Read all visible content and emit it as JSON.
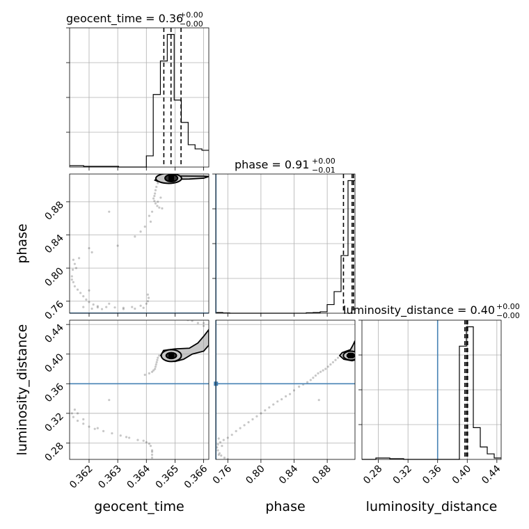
{
  "chart_data": {
    "type": "corner",
    "parameters": [
      "geocent_time",
      "phase",
      "luminosity_distance"
    ],
    "truths": {
      "geocent_time": null,
      "phase": 0.7457,
      "luminosity_distance": 0.36
    },
    "truth_color": "#4682b4",
    "titles": [
      {
        "param": "geocent_time",
        "text": "geocent_time = 0.36",
        "plus": "+0.00",
        "minus": "−0.00"
      },
      {
        "param": "phase",
        "text": "phase = 0.91",
        "plus": "+0.00",
        "minus": "−0.01"
      },
      {
        "param": "luminosity_distance",
        "text": "luminosity_distance = 0.40",
        "plus": "+0.00",
        "minus": "−0.00"
      }
    ],
    "ranges": {
      "geocent_time": [
        0.36132,
        0.36618
      ],
      "phase": [
        0.7455,
        0.9135
      ],
      "luminosity_distance": [
        0.2578,
        0.4458
      ]
    },
    "ticks": {
      "geocent_time": {
        "values": [
          0.362,
          0.363,
          0.364,
          0.365,
          0.366
        ],
        "labels": [
          "0.362",
          "0.363",
          "0.364",
          "0.365",
          "0.366"
        ]
      },
      "phase": {
        "values": [
          0.76,
          0.8,
          0.84,
          0.88
        ],
        "labels": [
          "0.76",
          "0.80",
          "0.84",
          "0.88"
        ]
      },
      "luminosity_distance": {
        "values": [
          0.28,
          0.32,
          0.36,
          0.4,
          0.44
        ],
        "labels": [
          "0.28",
          "0.32",
          "0.36",
          "0.40",
          "0.44"
        ]
      }
    },
    "row_ticks": {
      "phase": {
        "values": [
          0.76,
          0.8,
          0.84,
          0.88
        ],
        "labels": [
          "0.76",
          "0.80",
          "0.84",
          "0.88"
        ]
      },
      "luminosity_distance": {
        "values": [
          0.28,
          0.32,
          0.36,
          0.4,
          0.44
        ],
        "labels": [
          "0.28",
          "0.32",
          "0.36",
          "0.40",
          "0.44"
        ]
      }
    },
    "histograms": {
      "geocent_time": {
        "edges": [
          0.36132,
          0.36156,
          0.36181,
          0.36205,
          0.3623,
          0.36254,
          0.36278,
          0.36303,
          0.36327,
          0.36351,
          0.36375,
          0.364,
          0.36424,
          0.36449,
          0.36473,
          0.36497,
          0.36522,
          0.36546,
          0.3657,
          0.36594,
          0.36618
        ],
        "counts": [
          0.01,
          0.01,
          0.005,
          0.005,
          0.005,
          0.005,
          0.005,
          0,
          0,
          0,
          0,
          0.08,
          0.52,
          0.76,
          0.95,
          0.48,
          0.32,
          0.16,
          0.13,
          0.12
        ],
        "quantiles": [
          0.36461,
          0.36486,
          0.36521
        ]
      },
      "phase": {
        "edges": [
          0.7455,
          0.7539,
          0.7623,
          0.7707,
          0.7791,
          0.7875,
          0.7959,
          0.8043,
          0.8127,
          0.8211,
          0.8295,
          0.8379,
          0.8463,
          0.8547,
          0.8631,
          0.8715,
          0.8799,
          0.8883,
          0.8967,
          0.9051,
          0.9135
        ],
        "counts": [
          0.005,
          0.002,
          0,
          0,
          0,
          0,
          0,
          0,
          0,
          0,
          0,
          0,
          0,
          0.003,
          0.005,
          0.01,
          0.06,
          0.15,
          0.4,
          0.92
        ],
        "quantiles": [
          0.8996,
          0.91,
          0.9117
        ]
      },
      "luminosity_distance": {
        "edges": [
          0.2578,
          0.2672,
          0.2766,
          0.286,
          0.2954,
          0.3048,
          0.3142,
          0.3236,
          0.333,
          0.3424,
          0.3518,
          0.3612,
          0.3706,
          0.38,
          0.3894,
          0.3988,
          0.4082,
          0.4176,
          0.427,
          0.4364,
          0.4458
        ],
        "counts": [
          0,
          0,
          0.01,
          0.01,
          0.005,
          0.005,
          0,
          0,
          0,
          0,
          0,
          0,
          0,
          0,
          0.82,
          0.96,
          0.23,
          0.09,
          0.04,
          0.01
        ],
        "quantiles": [
          0.3968,
          0.3988,
          0.4005
        ]
      }
    },
    "joint": {
      "phase_vs_geocent_time": {
        "cores": [
          {
            "x": 0.36487,
            "y": 0.9085,
            "rx": 0.00022,
            "ry": 0.0042
          },
          {
            "x": 0.36478,
            "y": 0.9082,
            "rx": 0.00045,
            "ry": 0.006
          }
        ],
        "outer_contour": [
          [
            0.36445,
            0.911
          ],
          [
            0.365,
            0.9112
          ],
          [
            0.366,
            0.911
          ],
          [
            0.36618,
            0.9105
          ],
          [
            0.366,
            0.9085
          ],
          [
            0.3655,
            0.9074
          ],
          [
            0.365,
            0.9072
          ],
          [
            0.3646,
            0.906
          ],
          [
            0.3644,
            0.9045
          ],
          [
            0.3643,
            0.906
          ],
          [
            0.3644,
            0.909
          ]
        ],
        "scatter": [
          [
            0.3644,
            0.9025
          ],
          [
            0.36435,
            0.898
          ],
          [
            0.36432,
            0.894
          ],
          [
            0.3643,
            0.89
          ],
          [
            0.36428,
            0.887
          ],
          [
            0.36425,
            0.884
          ],
          [
            0.36428,
            0.881
          ],
          [
            0.36432,
            0.878
          ],
          [
            0.36438,
            0.875
          ],
          [
            0.36445,
            0.873
          ],
          [
            0.36455,
            0.872
          ],
          [
            0.3642,
            0.868
          ],
          [
            0.3641,
            0.863
          ],
          [
            0.3644,
            0.88
          ],
          [
            0.3645,
            0.885
          ],
          [
            0.36415,
            0.856
          ],
          [
            0.36395,
            0.85
          ],
          [
            0.3638,
            0.844
          ],
          [
            0.3636,
            0.838
          ],
          [
            0.363,
            0.827
          ],
          [
            0.3621,
            0.819
          ],
          [
            0.36165,
            0.812
          ],
          [
            0.3615,
            0.805
          ],
          [
            0.36143,
            0.798
          ],
          [
            0.3614,
            0.79
          ],
          [
            0.36145,
            0.783
          ],
          [
            0.3615,
            0.778
          ],
          [
            0.3616,
            0.774
          ],
          [
            0.3617,
            0.77
          ],
          [
            0.3618,
            0.766
          ],
          [
            0.3619,
            0.762
          ],
          [
            0.362,
            0.759
          ],
          [
            0.36215,
            0.756
          ],
          [
            0.3623,
            0.754
          ],
          [
            0.3626,
            0.753
          ],
          [
            0.3629,
            0.7525
          ],
          [
            0.3632,
            0.752
          ],
          [
            0.3635,
            0.753
          ],
          [
            0.3638,
            0.7545
          ],
          [
            0.364,
            0.757
          ],
          [
            0.36405,
            0.76
          ],
          [
            0.36408,
            0.764
          ],
          [
            0.36405,
            0.768
          ],
          [
            0.3627,
            0.868
          ],
          [
            0.3627,
            0.757
          ],
          [
            0.3623,
            0.7525
          ],
          [
            0.3621,
            0.751
          ],
          [
            0.36245,
            0.7505
          ],
          [
            0.3618,
            0.753
          ],
          [
            0.3632,
            0.7505
          ],
          [
            0.3636,
            0.751
          ],
          [
            0.3639,
            0.752
          ],
          [
            0.362,
            0.773
          ],
          [
            0.36155,
            0.8
          ],
          [
            0.36145,
            0.81
          ],
          [
            0.362,
            0.824
          ],
          [
            0.3614,
            0.786
          ]
        ]
      },
      "luminosity_distance_vs_geocent_time": {
        "cores": [
          {
            "x": 0.36487,
            "y": 0.398,
            "rx": 0.00018,
            "ry": 0.004
          },
          {
            "x": 0.36487,
            "y": 0.398,
            "rx": 0.00035,
            "ry": 0.008
          }
        ],
        "outer_contour": [
          [
            0.3645,
            0.398
          ],
          [
            0.3646,
            0.405
          ],
          [
            0.365,
            0.407
          ],
          [
            0.3655,
            0.408
          ],
          [
            0.3658,
            0.415
          ],
          [
            0.366,
            0.424
          ],
          [
            0.36618,
            0.433
          ],
          [
            0.36618,
            0.412
          ],
          [
            0.366,
            0.404
          ],
          [
            0.3656,
            0.4
          ],
          [
            0.3653,
            0.393
          ],
          [
            0.365,
            0.39
          ],
          [
            0.3647,
            0.391
          ]
        ],
        "scatter": [
          [
            0.36445,
            0.398
          ],
          [
            0.3644,
            0.395
          ],
          [
            0.36438,
            0.392
          ],
          [
            0.36436,
            0.389
          ],
          [
            0.36434,
            0.386
          ],
          [
            0.36432,
            0.383
          ],
          [
            0.3643,
            0.38
          ],
          [
            0.36425,
            0.378
          ],
          [
            0.3642,
            0.376
          ],
          [
            0.3641,
            0.374
          ],
          [
            0.36395,
            0.372
          ],
          [
            0.366,
            0.438
          ],
          [
            0.3658,
            0.442
          ],
          [
            0.3656,
            0.445
          ],
          [
            0.36545,
            0.446
          ],
          [
            0.366,
            0.442
          ],
          [
            0.3615,
            0.325
          ],
          [
            0.3614,
            0.32
          ],
          [
            0.36145,
            0.315
          ],
          [
            0.3616,
            0.31
          ],
          [
            0.3618,
            0.306
          ],
          [
            0.362,
            0.302
          ],
          [
            0.3622,
            0.299
          ],
          [
            0.3625,
            0.296
          ],
          [
            0.3628,
            0.293
          ],
          [
            0.3631,
            0.29
          ],
          [
            0.3634,
            0.287
          ],
          [
            0.3637,
            0.284
          ],
          [
            0.364,
            0.281
          ],
          [
            0.3641,
            0.279
          ],
          [
            0.36415,
            0.276
          ],
          [
            0.3642,
            0.27
          ],
          [
            0.3642,
            0.264
          ],
          [
            0.3642,
            0.26
          ],
          [
            0.3627,
            0.338
          ],
          [
            0.3616,
            0.32
          ],
          [
            0.3623,
            0.3
          ],
          [
            0.3633,
            0.288
          ],
          [
            0.3639,
            0.283
          ],
          [
            0.3618,
            0.312
          ],
          [
            0.3642,
            0.268
          ]
        ]
      },
      "luminosity_distance_vs_phase": {
        "cores": [
          {
            "x": 0.9085,
            "y": 0.398,
            "rx": 0.0045,
            "ry": 0.003
          },
          {
            "x": 0.9085,
            "y": 0.398,
            "rx": 0.009,
            "ry": 0.006
          }
        ],
        "outer_contour": [
          [
            0.895,
            0.398
          ],
          [
            0.898,
            0.402
          ],
          [
            0.903,
            0.404
          ],
          [
            0.908,
            0.406
          ],
          [
            0.911,
            0.412
          ],
          [
            0.9135,
            0.418
          ],
          [
            0.9135,
            0.392
          ],
          [
            0.91,
            0.391
          ],
          [
            0.905,
            0.392
          ],
          [
            0.9,
            0.393
          ]
        ],
        "scatter": [
          [
            0.893,
            0.395
          ],
          [
            0.89,
            0.392
          ],
          [
            0.887,
            0.389
          ],
          [
            0.884,
            0.386
          ],
          [
            0.881,
            0.383
          ],
          [
            0.878,
            0.38
          ],
          [
            0.875,
            0.378
          ],
          [
            0.872,
            0.376
          ],
          [
            0.869,
            0.374
          ],
          [
            0.866,
            0.371
          ],
          [
            0.863,
            0.368
          ],
          [
            0.86,
            0.365
          ],
          [
            0.856,
            0.362
          ],
          [
            0.851,
            0.359
          ],
          [
            0.846,
            0.356
          ],
          [
            0.84,
            0.351
          ],
          [
            0.835,
            0.346
          ],
          [
            0.83,
            0.343
          ],
          [
            0.825,
            0.339
          ],
          [
            0.82,
            0.336
          ],
          [
            0.815,
            0.332
          ],
          [
            0.81,
            0.328
          ],
          [
            0.805,
            0.324
          ],
          [
            0.8,
            0.32
          ],
          [
            0.795,
            0.316
          ],
          [
            0.79,
            0.312
          ],
          [
            0.785,
            0.308
          ],
          [
            0.78,
            0.304
          ],
          [
            0.775,
            0.3
          ],
          [
            0.77,
            0.296
          ],
          [
            0.765,
            0.291
          ],
          [
            0.76,
            0.287
          ],
          [
            0.755,
            0.284
          ],
          [
            0.751,
            0.281
          ],
          [
            0.748,
            0.278
          ],
          [
            0.747,
            0.274
          ],
          [
            0.748,
            0.27
          ],
          [
            0.75,
            0.266
          ],
          [
            0.752,
            0.263
          ],
          [
            0.756,
            0.26
          ],
          [
            0.76,
            0.258
          ],
          [
            0.87,
            0.338
          ],
          [
            0.749,
            0.286
          ],
          [
            0.753,
            0.276
          ],
          [
            0.749,
            0.264
          ]
        ]
      }
    },
    "axis_labels": {
      "x": [
        "geocent_time",
        "phase",
        "luminosity_distance"
      ],
      "y": [
        "phase",
        "luminosity_distance"
      ]
    },
    "grid": true
  }
}
